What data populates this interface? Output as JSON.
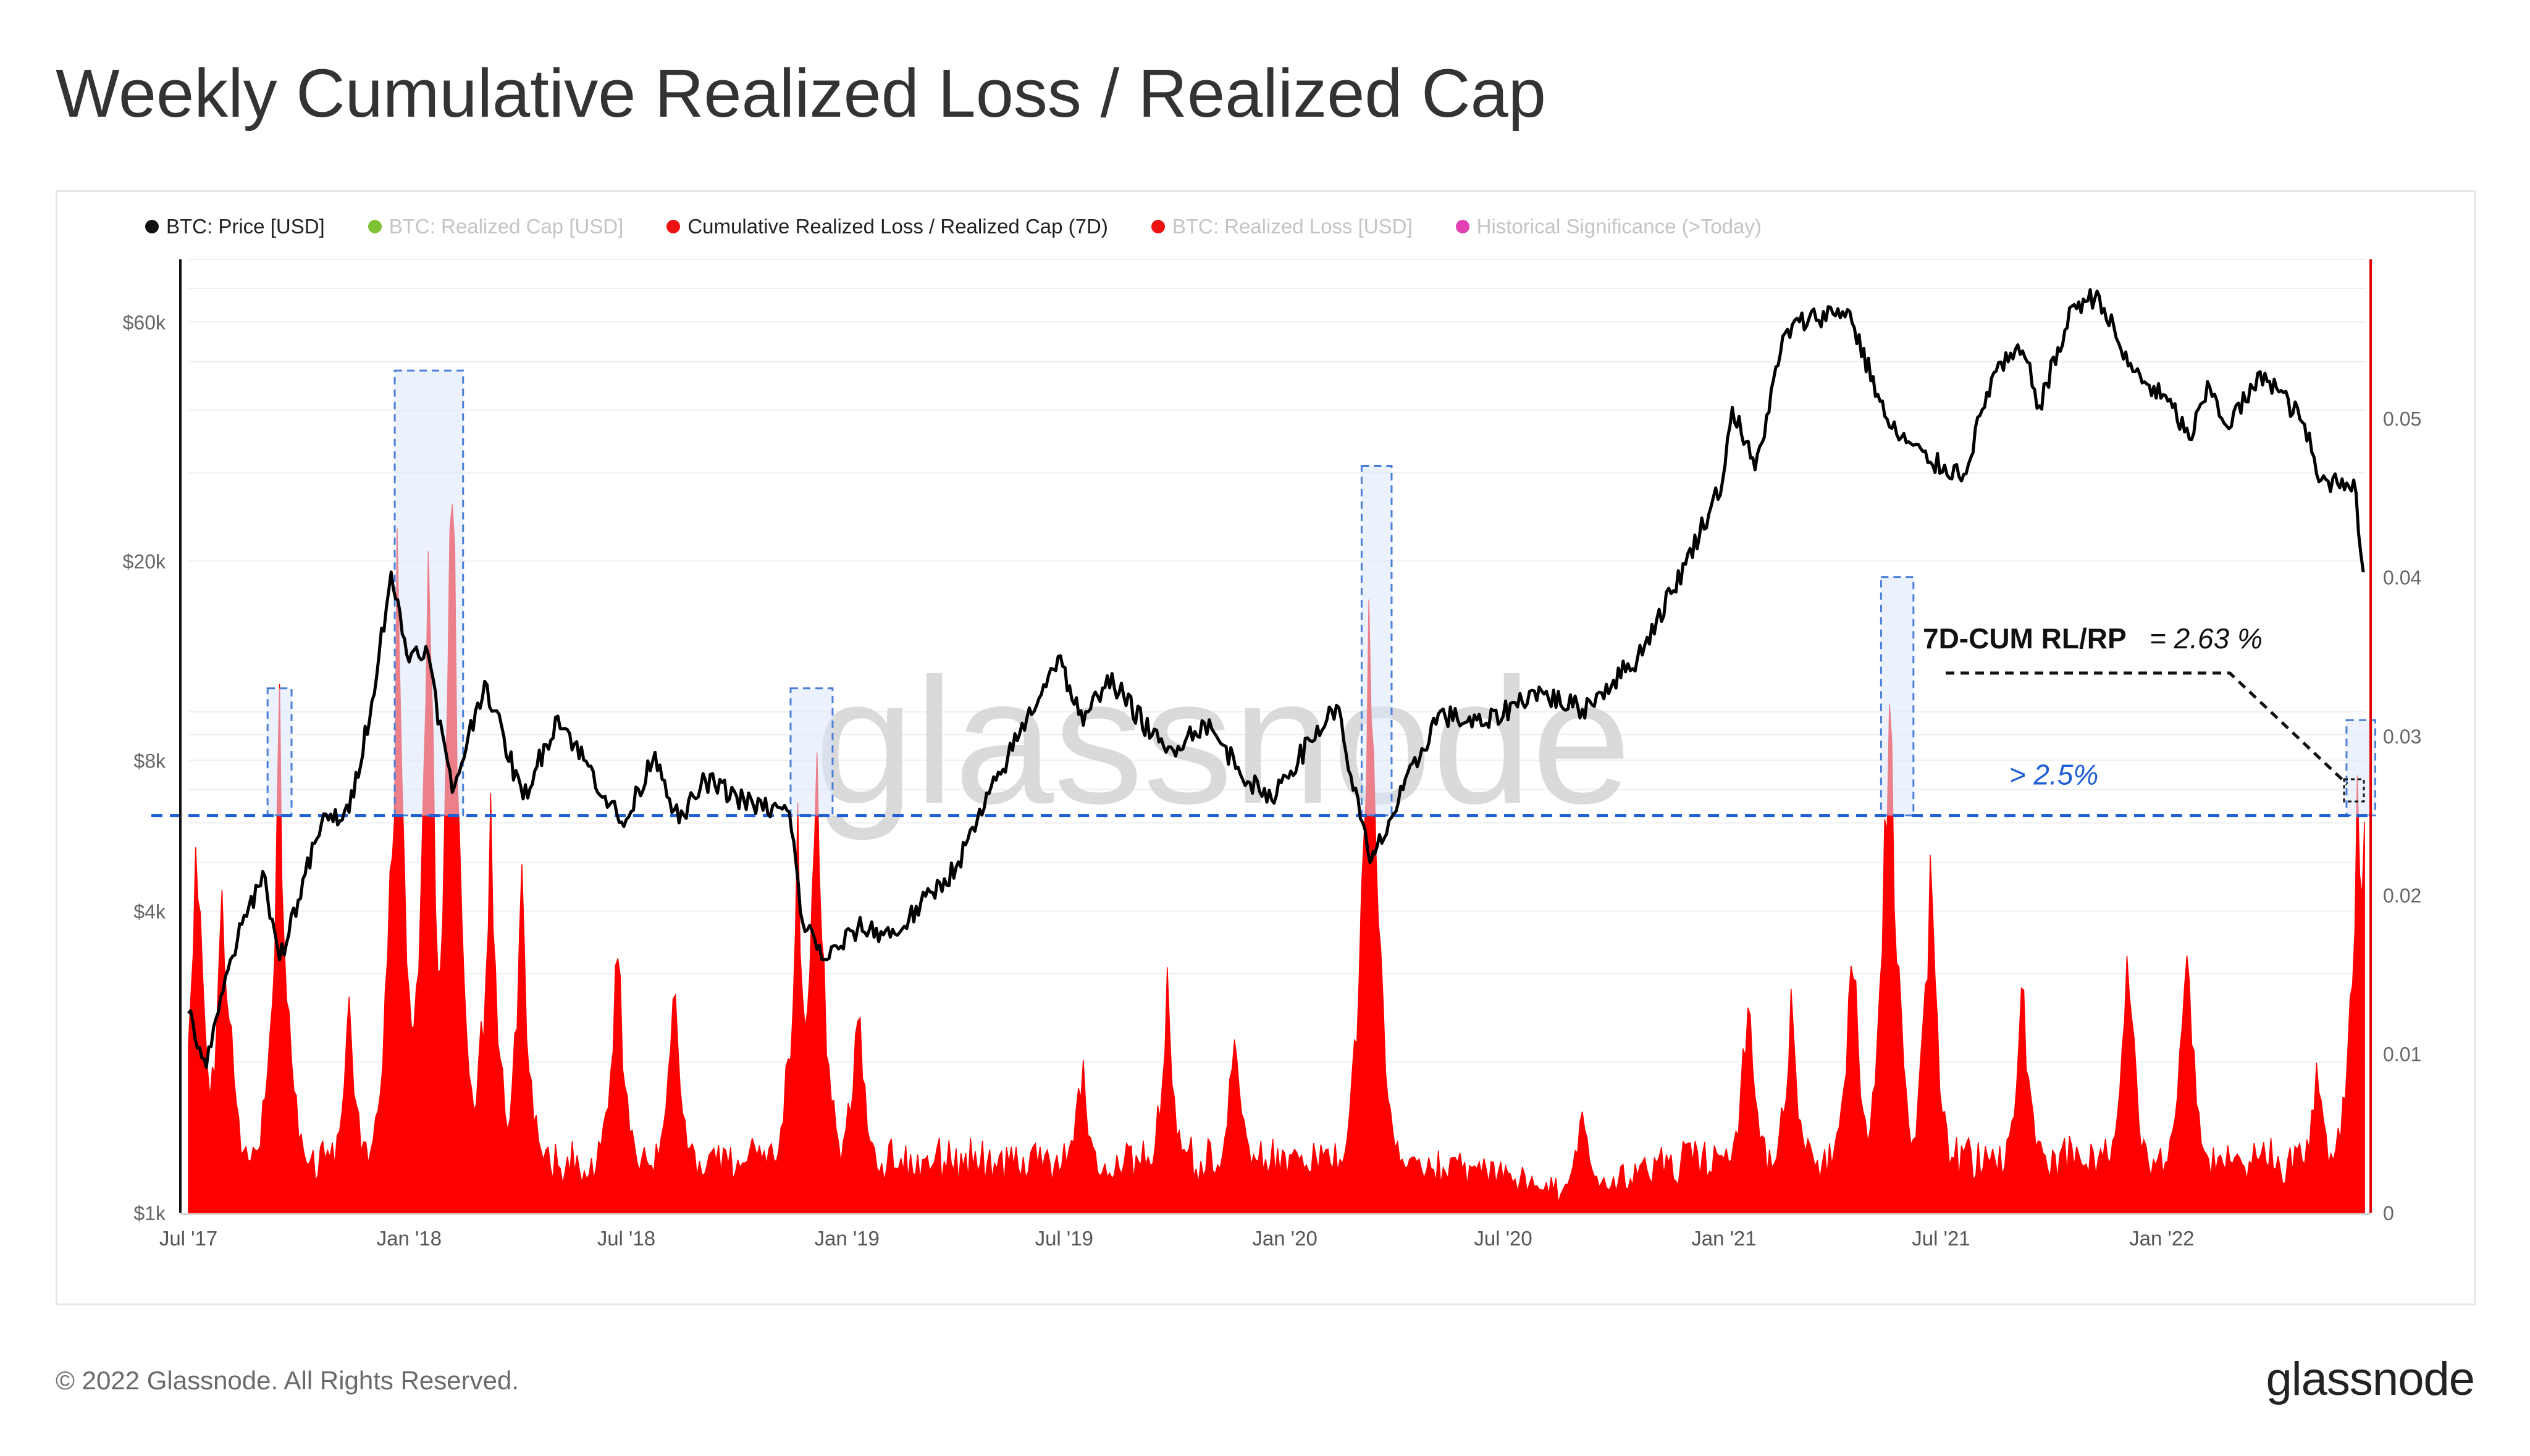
{
  "title": "Weekly Cumulative Realized Loss / Realized Cap",
  "footer": {
    "copyright": "© 2022 Glassnode. All Rights Reserved.",
    "brand": "glassnode"
  },
  "watermark": "glassnode",
  "colors": {
    "price": "#000000",
    "loss": "#ff0000",
    "highlight_fill": "#dbe8fb",
    "highlight_stroke": "#4a7fd8",
    "threshold": "#1f5fd6",
    "right_axis": "#e00000"
  },
  "legend": [
    {
      "label": "BTC: Price [USD]",
      "color": "#111111",
      "active": true
    },
    {
      "label": "BTC: Realized Cap [USD]",
      "color": "#7ec234",
      "active": false
    },
    {
      "label": "Cumulative Realized Loss / Realized Cap (7D)",
      "color": "#ee1111",
      "active": true
    },
    {
      "label": "BTC: Realized Loss [USD]",
      "color": "#ee1111",
      "active": false
    },
    {
      "label": "Historical Significance (>Today)",
      "color": "#e040b0",
      "active": false
    }
  ],
  "chart_data": {
    "type": "line",
    "x_ticks": [
      "Jul '17",
      "Jan '18",
      "Jul '18",
      "Jan '19",
      "Jul '19",
      "Jan '20",
      "Jul '20",
      "Jan '21",
      "Jul '21",
      "Jan '22"
    ],
    "x_range": [
      "2017-07-01",
      "2022-06-20"
    ],
    "left_axis": {
      "scale": "log",
      "ticks": [
        "$1k",
        "$4k",
        "$8k",
        "$20k",
        "$60k"
      ],
      "tick_values": [
        1000,
        4000,
        8000,
        20000,
        60000
      ],
      "range": [
        1000,
        80000
      ]
    },
    "right_axis": {
      "scale": "linear",
      "ticks": [
        "0",
        "0.01",
        "0.02",
        "0.03",
        "0.04",
        "0.05"
      ],
      "range": [
        0,
        0.06
      ]
    },
    "threshold": {
      "value": 0.025,
      "label": "> 2.5%"
    },
    "annotation": {
      "label": "7D-CUM RL/RP",
      "value": "= 2.63 %"
    },
    "highlight_periods": [
      {
        "start": "2017-09-05",
        "end": "2017-09-25",
        "top": 0.033
      },
      {
        "start": "2017-12-20",
        "end": "2018-02-15",
        "top": 0.053
      },
      {
        "start": "2018-11-15",
        "end": "2018-12-20",
        "top": 0.033
      },
      {
        "start": "2020-03-05",
        "end": "2020-03-30",
        "top": 0.047
      },
      {
        "start": "2021-05-12",
        "end": "2021-06-08",
        "top": 0.04
      },
      {
        "start": "2022-06-04",
        "end": "2022-06-28",
        "top": 0.031
      }
    ],
    "series": [
      {
        "name": "BTC: Price [USD]",
        "axis": "left",
        "points": [
          [
            "2017-07-01",
            2500
          ],
          [
            "2017-07-16",
            1950
          ],
          [
            "2017-08-05",
            3200
          ],
          [
            "2017-09-01",
            4800
          ],
          [
            "2017-09-15",
            3200
          ],
          [
            "2017-10-20",
            6000
          ],
          [
            "2017-11-12",
            6300
          ],
          [
            "2017-12-01",
            10500
          ],
          [
            "2017-12-17",
            19000
          ],
          [
            "2017-12-30",
            13000
          ],
          [
            "2018-01-15",
            13500
          ],
          [
            "2018-02-06",
            6900
          ],
          [
            "2018-03-05",
            11500
          ],
          [
            "2018-04-06",
            6700
          ],
          [
            "2018-05-05",
            9800
          ],
          [
            "2018-06-29",
            5900
          ],
          [
            "2018-07-25",
            8300
          ],
          [
            "2018-08-14",
            6000
          ],
          [
            "2018-09-05",
            7300
          ],
          [
            "2018-10-15",
            6500
          ],
          [
            "2018-11-14",
            6300
          ],
          [
            "2018-11-25",
            3800
          ],
          [
            "2018-12-15",
            3200
          ],
          [
            "2019-01-10",
            3700
          ],
          [
            "2019-02-10",
            3600
          ],
          [
            "2019-04-02",
            4900
          ],
          [
            "2019-05-15",
            8100
          ],
          [
            "2019-06-26",
            12900
          ],
          [
            "2019-07-17",
            9400
          ],
          [
            "2019-08-06",
            11800
          ],
          [
            "2019-09-24",
            8300
          ],
          [
            "2019-10-26",
            9500
          ],
          [
            "2019-12-17",
            6600
          ],
          [
            "2020-02-13",
            10300
          ],
          [
            "2020-03-12",
            5000
          ],
          [
            "2020-03-16",
            5200
          ],
          [
            "2020-05-08",
            9900
          ],
          [
            "2020-06-15",
            9400
          ],
          [
            "2020-07-27",
            11000
          ],
          [
            "2020-09-05",
            10100
          ],
          [
            "2020-10-21",
            12800
          ],
          [
            "2020-11-30",
            19700
          ],
          [
            "2020-12-31",
            29000
          ],
          [
            "2021-01-08",
            40500
          ],
          [
            "2021-01-27",
            30400
          ],
          [
            "2021-02-21",
            57000
          ],
          [
            "2021-03-13",
            61000
          ],
          [
            "2021-04-14",
            63500
          ],
          [
            "2021-05-19",
            37000
          ],
          [
            "2021-06-22",
            31500
          ],
          [
            "2021-07-20",
            29800
          ],
          [
            "2021-08-14",
            47500
          ],
          [
            "2021-09-07",
            52500
          ],
          [
            "2021-09-21",
            40800
          ],
          [
            "2021-10-20",
            65000
          ],
          [
            "2021-11-10",
            67500
          ],
          [
            "2021-12-04",
            49000
          ],
          [
            "2022-01-10",
            40500
          ],
          [
            "2022-01-24",
            35000
          ],
          [
            "2022-02-10",
            44500
          ],
          [
            "2022-02-24",
            37200
          ],
          [
            "2022-03-28",
            47400
          ],
          [
            "2022-04-30",
            37500
          ],
          [
            "2022-05-12",
            28800
          ],
          [
            "2022-06-10",
            29000
          ],
          [
            "2022-06-18",
            19000
          ]
        ]
      },
      {
        "name": "Cumulative Realized Loss / Realized Cap (7D)",
        "axis": "right",
        "spikes": [
          [
            "2017-07-08",
            0.027
          ],
          [
            "2017-07-30",
            0.023
          ],
          [
            "2017-09-15",
            0.032
          ],
          [
            "2017-11-12",
            0.013
          ],
          [
            "2017-12-22",
            0.041
          ],
          [
            "2018-01-17",
            0.045
          ],
          [
            "2018-02-06",
            0.052
          ],
          [
            "2018-03-10",
            0.027
          ],
          [
            "2018-04-05",
            0.021
          ],
          [
            "2018-06-24",
            0.018
          ],
          [
            "2018-08-10",
            0.015
          ],
          [
            "2018-11-21",
            0.025
          ],
          [
            "2018-12-07",
            0.03
          ],
          [
            "2019-01-10",
            0.015
          ],
          [
            "2019-07-16",
            0.01
          ],
          [
            "2019-09-25",
            0.015
          ],
          [
            "2019-11-21",
            0.013
          ],
          [
            "2020-03-12",
            0.044
          ],
          [
            "2020-06-15",
            0.003
          ],
          [
            "2020-09-05",
            0.007
          ],
          [
            "2021-01-21",
            0.015
          ],
          [
            "2021-02-26",
            0.014
          ],
          [
            "2021-04-18",
            0.019
          ],
          [
            "2021-05-19",
            0.036
          ],
          [
            "2021-06-22",
            0.023
          ],
          [
            "2021-09-07",
            0.016
          ],
          [
            "2021-12-04",
            0.018
          ],
          [
            "2022-01-22",
            0.019
          ],
          [
            "2022-05-11",
            0.01
          ],
          [
            "2022-06-13",
            0.028
          ],
          [
            "2022-06-18",
            0.026
          ]
        ]
      }
    ]
  }
}
